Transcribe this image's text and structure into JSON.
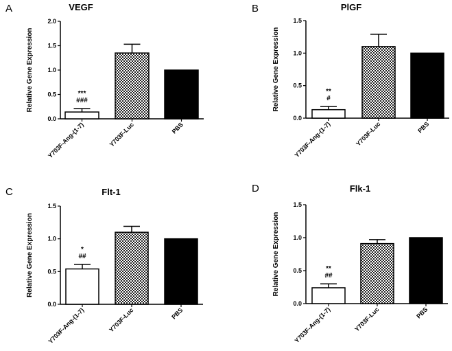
{
  "chart_data": [
    {
      "panel": "A",
      "type": "bar",
      "title": "VEGF",
      "ylabel": "Relative Gene Expression",
      "xlabel": "",
      "ylim": [
        0,
        2.0
      ],
      "yticks": [
        "0.0",
        "0.5",
        "1.0",
        "1.5",
        "2.0"
      ],
      "categories": [
        "Y703F-Ang-(1-7)",
        "Y703F-Luc",
        "PBS"
      ],
      "values": [
        0.14,
        1.35,
        1.0
      ],
      "errors": [
        0.07,
        0.18,
        0
      ],
      "fills": [
        "white",
        "checker",
        "black"
      ],
      "annotations": [
        {
          "category": "Y703F-Ang-(1-7)",
          "stars": "***",
          "hashes": "###"
        }
      ]
    },
    {
      "panel": "B",
      "type": "bar",
      "title": "PlGF",
      "ylabel": "Relative Gene Expression",
      "xlabel": "",
      "ylim": [
        0,
        1.5
      ],
      "yticks": [
        "0.0",
        "0.5",
        "1.0",
        "1.5"
      ],
      "categories": [
        "Y703F-Ang-(1-7)",
        "Y703F-Luc",
        "PBS"
      ],
      "values": [
        0.13,
        1.1,
        1.0
      ],
      "errors": [
        0.05,
        0.19,
        0
      ],
      "fills": [
        "white",
        "checker",
        "black"
      ],
      "annotations": [
        {
          "category": "Y703F-Ang-(1-7)",
          "stars": "**",
          "hashes": "#"
        }
      ]
    },
    {
      "panel": "C",
      "type": "bar",
      "title": "Flt-1",
      "ylabel": "Relative Gene Expression",
      "xlabel": "",
      "ylim": [
        0,
        1.5
      ],
      "yticks": [
        "0.0",
        "0.5",
        "1.0",
        "1.5"
      ],
      "categories": [
        "Y703F-Ang-(1-7)",
        "Y703F-Luc",
        "PBS"
      ],
      "values": [
        0.54,
        1.1,
        1.0
      ],
      "errors": [
        0.07,
        0.09,
        0
      ],
      "fills": [
        "white",
        "checker",
        "black"
      ],
      "annotations": [
        {
          "category": "Y703F-Ang-(1-7)",
          "stars": "*",
          "hashes": "##"
        }
      ]
    },
    {
      "panel": "D",
      "type": "bar",
      "title": "Flk-1",
      "ylabel": "Relative Gene Expression",
      "xlabel": "",
      "ylim": [
        0,
        1.5
      ],
      "yticks": [
        "0.0",
        "0.5",
        "1.0",
        "1.5"
      ],
      "categories": [
        "Y703F-Ang-(1-7)",
        "Y703F-Luc",
        "PBS"
      ],
      "values": [
        0.24,
        0.91,
        1.0
      ],
      "errors": [
        0.06,
        0.06,
        0
      ],
      "fills": [
        "white",
        "checker",
        "black"
      ],
      "annotations": [
        {
          "category": "Y703F-Ang-(1-7)",
          "stars": "**",
          "hashes": "##"
        }
      ]
    }
  ]
}
